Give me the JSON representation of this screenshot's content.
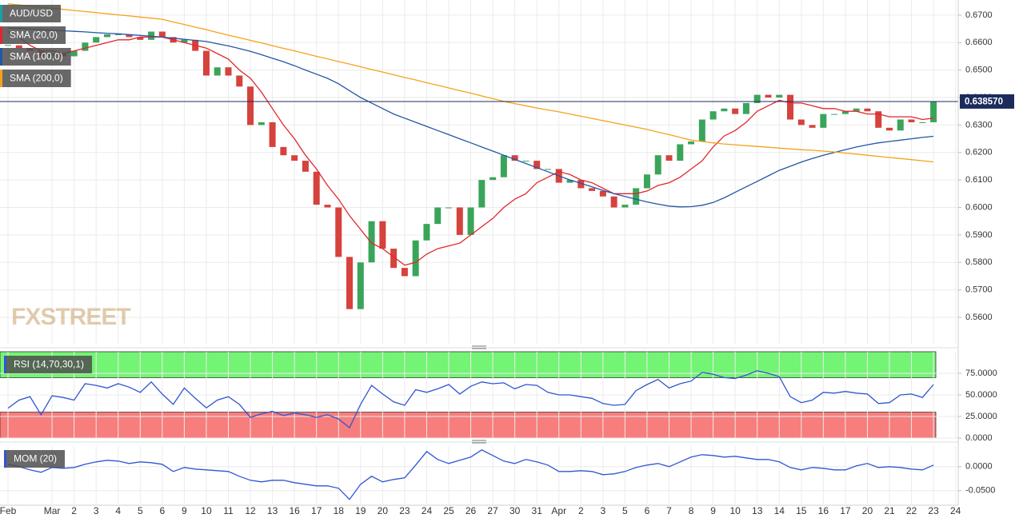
{
  "chart_data": [
    {
      "type": "candlestick",
      "watermark": "FXSTREET",
      "grid": true,
      "categories": [
        "Feb",
        null,
        null,
        null,
        "Mar",
        null,
        "2",
        null,
        "3",
        null,
        "4",
        null,
        "5",
        null,
        "6",
        null,
        "9",
        null,
        "10",
        null,
        "11",
        null,
        "12",
        null,
        "13",
        null,
        "16",
        null,
        "17",
        null,
        "18",
        null,
        "19",
        null,
        "20",
        null,
        "23",
        null,
        "24",
        null,
        "25",
        null,
        "26",
        null,
        "27",
        null,
        "30",
        null,
        "31",
        null,
        "Apr",
        null,
        "2",
        null,
        "3",
        null,
        "5",
        null,
        "6",
        null,
        "7",
        null,
        "8",
        null,
        "9",
        null,
        "10",
        null,
        "13",
        null,
        "14",
        null,
        "15",
        null,
        "16",
        null,
        "17",
        null,
        "20",
        null,
        "21",
        null,
        "22",
        null,
        "23",
        null,
        "24",
        null
      ],
      "ylim": [
        0.5504,
        0.6755
      ],
      "yticks": [
        {
          "value": 0.56,
          "label": "0.5600"
        },
        {
          "value": 0.57,
          "label": "0.5700"
        },
        {
          "value": 0.58,
          "label": "0.5800"
        },
        {
          "value": 0.59,
          "label": "0.5900"
        },
        {
          "value": 0.6,
          "label": "0.6000"
        },
        {
          "value": 0.61,
          "label": "0.6100"
        },
        {
          "value": 0.62,
          "label": "0.6200"
        },
        {
          "value": 0.63,
          "label": "0.6300"
        },
        {
          "value": 0.64,
          "label": "0.6400"
        },
        {
          "value": 0.65,
          "label": "0.6500"
        },
        {
          "value": 0.66,
          "label": "0.6600"
        },
        {
          "value": 0.67,
          "label": "0.6700"
        }
      ],
      "last_price": {
        "value": 0.63857,
        "label": "0.638570"
      },
      "series": [
        {
          "name": "AUD/USD",
          "type": "candlestick",
          "colors": {
            "up": "#3aa55a",
            "down": "#d6423c",
            "legend": "#1e9fa0"
          },
          "values": [
            0.659,
            0.658,
            0.657,
            0.655,
            0.656,
            0.655,
            0.657,
            0.66,
            0.662,
            0.663,
            0.663,
            0.662,
            0.661,
            0.664,
            0.662,
            0.66,
            0.661,
            0.657,
            0.648,
            0.651,
            0.648,
            0.644,
            0.63,
            0.631,
            0.622,
            0.619,
            0.617,
            0.613,
            0.601,
            0.6,
            0.582,
            0.563,
            0.58,
            0.595,
            0.585,
            0.578,
            0.575,
            0.588,
            0.594,
            0.6,
            0.6,
            0.59,
            0.6,
            0.61,
            0.611,
            0.619,
            0.617,
            0.617,
            0.614,
            0.614,
            0.609,
            0.61,
            0.607,
            0.606,
            0.604,
            0.6,
            0.601,
            0.607,
            0.612,
            0.619,
            0.617,
            0.623,
            0.624,
            0.632,
            0.635,
            0.636,
            0.634,
            0.638,
            0.641,
            0.64,
            0.641,
            0.632,
            0.63,
            0.629,
            0.634,
            0.634,
            0.635,
            0.636,
            0.635,
            0.629,
            0.628,
            0.632,
            0.631,
            0.631,
            0.6386,
            null,
            null,
            null
          ]
        },
        {
          "name": "SMA (20,0)",
          "type": "line",
          "color": "#e3262b",
          "values": [
            0.664,
            0.662,
            0.659,
            0.657,
            0.657,
            0.656,
            0.657,
            0.658,
            0.659,
            0.66,
            0.661,
            0.661,
            0.662,
            0.662,
            0.662,
            0.661,
            0.66,
            0.659,
            0.658,
            0.656,
            0.654,
            0.65,
            0.647,
            0.642,
            0.636,
            0.63,
            0.625,
            0.619,
            0.614,
            0.608,
            0.603,
            0.597,
            0.592,
            0.587,
            0.585,
            0.582,
            0.579,
            0.58,
            0.583,
            0.585,
            0.586,
            0.587,
            0.59,
            0.593,
            0.596,
            0.6,
            0.603,
            0.605,
            0.609,
            0.611,
            0.613,
            0.612,
            0.61,
            0.609,
            0.607,
            0.605,
            0.605,
            0.605,
            0.606,
            0.608,
            0.609,
            0.611,
            0.614,
            0.617,
            0.622,
            0.626,
            0.628,
            0.631,
            0.635,
            0.637,
            0.639,
            0.638,
            0.638,
            0.637,
            0.636,
            0.636,
            0.635,
            0.635,
            0.634,
            0.634,
            0.633,
            0.633,
            0.633,
            0.632,
            0.6325,
            null,
            null,
            null
          ]
        },
        {
          "name": "SMA (100,0)",
          "type": "line",
          "color": "#2456a6",
          "values": [
            0.6653,
            0.6651,
            0.6649,
            0.6647,
            0.6645,
            0.6643,
            0.6641,
            0.6639,
            0.6636,
            0.6634,
            0.6632,
            0.6629,
            0.6626,
            0.6623,
            0.662,
            0.6616,
            0.6612,
            0.6608,
            0.6604,
            0.6596,
            0.6588,
            0.6578,
            0.6568,
            0.6556,
            0.6543,
            0.653,
            0.6516,
            0.65,
            0.6485,
            0.647,
            0.645,
            0.6425,
            0.64,
            0.638,
            0.636,
            0.634,
            0.6325,
            0.631,
            0.6295,
            0.628,
            0.6265,
            0.625,
            0.6235,
            0.622,
            0.6205,
            0.619,
            0.6175,
            0.616,
            0.6145,
            0.613,
            0.6115,
            0.61,
            0.6088,
            0.6075,
            0.6062,
            0.605,
            0.604,
            0.603,
            0.602,
            0.6012,
            0.6005,
            0.6002,
            0.6003,
            0.6008,
            0.6018,
            0.6035,
            0.6055,
            0.6075,
            0.6095,
            0.6115,
            0.6135,
            0.615,
            0.6165,
            0.6178,
            0.619,
            0.62,
            0.621,
            0.622,
            0.6228,
            0.6235,
            0.624,
            0.6245,
            0.625,
            0.6255,
            0.6259,
            null,
            null,
            null
          ]
        },
        {
          "name": "SMA (200,0)",
          "type": "line",
          "color": "#f5a21b",
          "values": [
            0.6741,
            0.6737,
            0.6733,
            0.6729,
            0.6725,
            0.6721,
            0.6717,
            0.6713,
            0.6709,
            0.6705,
            0.6701,
            0.6697,
            0.6693,
            0.6689,
            0.6685,
            0.6675,
            0.6666,
            0.6656,
            0.6647,
            0.6637,
            0.6627,
            0.6618,
            0.6608,
            0.6599,
            0.6589,
            0.6579,
            0.657,
            0.656,
            0.655,
            0.6541,
            0.6531,
            0.6522,
            0.6512,
            0.6502,
            0.6493,
            0.6483,
            0.6473,
            0.6464,
            0.6454,
            0.6445,
            0.6435,
            0.6425,
            0.6416,
            0.6406,
            0.6396,
            0.6386,
            0.6378,
            0.637,
            0.6362,
            0.6355,
            0.6348,
            0.634,
            0.6332,
            0.6324,
            0.6316,
            0.6308,
            0.63,
            0.6292,
            0.6284,
            0.6274,
            0.6265,
            0.6255,
            0.6245,
            0.624,
            0.6235,
            0.6231,
            0.6228,
            0.6225,
            0.6222,
            0.6219,
            0.6216,
            0.6213,
            0.621,
            0.6208,
            0.6205,
            0.6202,
            0.6198,
            0.6194,
            0.619,
            0.6186,
            0.6182,
            0.6178,
            0.6174,
            0.617,
            0.6166,
            null,
            null,
            null
          ]
        }
      ]
    },
    {
      "type": "line",
      "title": "RSI (14,70,30,1)",
      "grid": true,
      "ylim": [
        0,
        100
      ],
      "yticks": [
        {
          "value": 0,
          "label": "0.0000"
        },
        {
          "value": 25,
          "label": "25.0000"
        },
        {
          "value": 50,
          "label": "50.0000"
        },
        {
          "value": 75,
          "label": "75.0000"
        }
      ],
      "bands": [
        {
          "from": 70,
          "to": 100,
          "color": "#74f474"
        },
        {
          "from": 0,
          "to": 30,
          "color": "#f87d7d"
        }
      ],
      "series": [
        {
          "color": "#2f55d4",
          "values": [
            34.6,
            44,
            48,
            27,
            49,
            47,
            44,
            63,
            61,
            58,
            63,
            59,
            53,
            65,
            51,
            39,
            58,
            46,
            35,
            44,
            48,
            39,
            24,
            28,
            31,
            26,
            29,
            27,
            24,
            27,
            22,
            12,
            39,
            61,
            51,
            42,
            38,
            56,
            53,
            57,
            62,
            51,
            60,
            65,
            63,
            64,
            57,
            62,
            61,
            53,
            50,
            50,
            48,
            46,
            40,
            38,
            39,
            55,
            62,
            68,
            58,
            63,
            66,
            76,
            74,
            70,
            69,
            73,
            78,
            75,
            71,
            48,
            41,
            44,
            53,
            52,
            54,
            52,
            51,
            40,
            41,
            50,
            51,
            47,
            62,
            null,
            null,
            null
          ]
        }
      ]
    },
    {
      "type": "line",
      "title": "MOM (20)",
      "grid": true,
      "ylim": [
        -0.077,
        0.043
      ],
      "yticks": [
        {
          "value": -0.05,
          "label": "-0.0500"
        },
        {
          "value": 0,
          "label": "0.0000"
        }
      ],
      "series": [
        {
          "color": "#2f55d4",
          "values": [
            0.005,
            0,
            -0.0067,
            -0.0117,
            -0.0017,
            -0.0033,
            -0.0017,
            0.005,
            0.01,
            0.0133,
            0.0117,
            0.0067,
            0.01,
            0.0083,
            0.005,
            -0.01,
            -0.0017,
            -0.005,
            -0.0067,
            -0.0083,
            -0.01,
            -0.02,
            -0.0283,
            -0.0317,
            -0.0283,
            -0.0283,
            -0.0333,
            -0.0367,
            -0.04,
            -0.04,
            -0.045,
            -0.0683,
            -0.0367,
            -0.02,
            -0.0317,
            -0.0267,
            -0.0233,
            0.0033,
            0.0317,
            0.015,
            0.0067,
            0.0133,
            0.02,
            0.035,
            0.0233,
            0.0117,
            0.0067,
            0.015,
            0.01,
            0.0033,
            -0.01,
            -0.01,
            -0.0083,
            -0.01,
            -0.0167,
            -0.015,
            -0.01,
            -0.0017,
            0.0033,
            0.0067,
            0,
            0.01,
            0.02,
            0.025,
            0.0233,
            0.02,
            0.0217,
            0.0183,
            0.015,
            0.015,
            0.01,
            -0.0017,
            -0.0067,
            -0.0017,
            -0.0033,
            -0.0067,
            -0.0067,
            0.0017,
            0.0067,
            -0.0017,
            0,
            -0.0017,
            -0.005,
            -0.0067,
            0.0033,
            null,
            null,
            null
          ]
        }
      ]
    }
  ]
}
